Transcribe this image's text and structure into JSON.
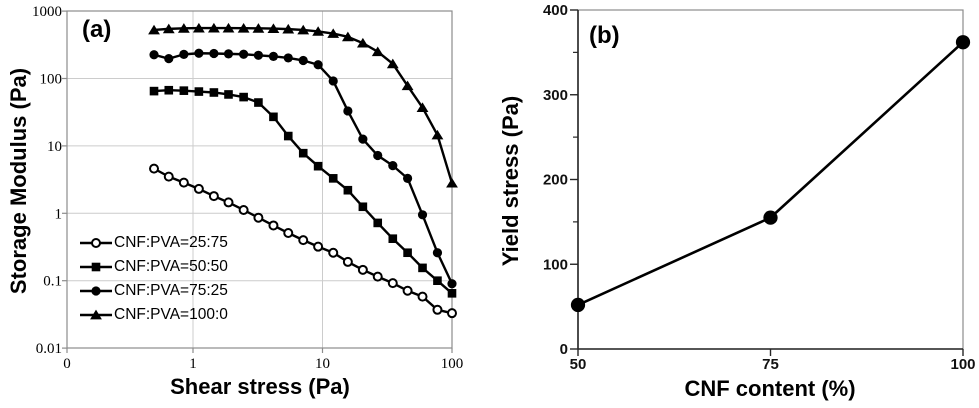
{
  "figure": {
    "description": "Two-panel rheology figure",
    "series_color": "#000000",
    "gridline_color": "#cccccc",
    "border_color": "#8c8c8c"
  },
  "chart_data": [
    {
      "type": "line",
      "panel_label": "(a)",
      "xlabel": "Shear stress (Pa)",
      "ylabel": "Storage Modulus (Pa)",
      "x_scale": "log",
      "y_scale": "log",
      "xlim": [
        0.1,
        100
      ],
      "ylim": [
        0.01,
        1000
      ],
      "x_tick_labels": [
        "0",
        "1",
        "10",
        "100"
      ],
      "y_tick_labels": [
        "1000",
        "100",
        "10",
        "1",
        "0.1",
        "0.01"
      ],
      "grid": true,
      "legend_position": "inside-lower-left",
      "x": [
        0.5,
        0.65,
        0.85,
        1.11,
        1.45,
        1.88,
        2.46,
        3.2,
        4.18,
        5.44,
        7.1,
        9.25,
        12.1,
        15.7,
        20.5,
        26.7,
        34.9,
        45.4,
        59.2,
        77.2,
        100
      ],
      "series": [
        {
          "name": "CNF:PVA=25:75",
          "marker": "open-circle",
          "values": [
            4.6,
            3.5,
            2.85,
            2.3,
            1.8,
            1.45,
            1.12,
            0.86,
            0.66,
            0.51,
            0.4,
            0.32,
            0.26,
            0.19,
            0.145,
            0.115,
            0.092,
            0.071,
            0.058,
            0.037,
            0.033
          ]
        },
        {
          "name": "CNF:PVA=50:50",
          "marker": "filled-square",
          "values": [
            65,
            67,
            66,
            64,
            62,
            58,
            53,
            44,
            27,
            14,
            7.8,
            5.0,
            3.3,
            2.2,
            1.25,
            0.72,
            0.42,
            0.26,
            0.155,
            0.1,
            0.065
          ]
        },
        {
          "name": "CNF:PVA=75:25",
          "marker": "filled-circle",
          "values": [
            225,
            197,
            228,
            237,
            235,
            232,
            229,
            221,
            213,
            202,
            185,
            160,
            92,
            33,
            12.6,
            7.2,
            5.1,
            3.3,
            0.95,
            0.26,
            0.09
          ]
        },
        {
          "name": "CNF:PVA=100:0",
          "marker": "filled-triangle",
          "values": [
            525,
            545,
            555,
            560,
            560,
            560,
            558,
            555,
            550,
            540,
            525,
            500,
            465,
            415,
            335,
            250,
            165,
            78,
            37,
            14.5,
            2.8
          ]
        }
      ]
    },
    {
      "type": "line",
      "panel_label": "(b)",
      "xlabel": "CNF content (%)",
      "ylabel": "Yield stress (Pa)",
      "x_scale": "linear",
      "y_scale": "linear",
      "xlim": [
        50,
        100
      ],
      "ylim": [
        0,
        400
      ],
      "x_tick_labels": [
        "50",
        "75",
        "100"
      ],
      "y_tick_labels": [
        "400",
        "300",
        "200",
        "100",
        "0"
      ],
      "y_minor_ticks": [
        50,
        150,
        250,
        350
      ],
      "grid": false,
      "series": [
        {
          "name": "Yield stress",
          "marker": "filled-circle",
          "x": [
            50,
            75,
            100
          ],
          "values": [
            52,
            155,
            362
          ]
        }
      ]
    }
  ]
}
